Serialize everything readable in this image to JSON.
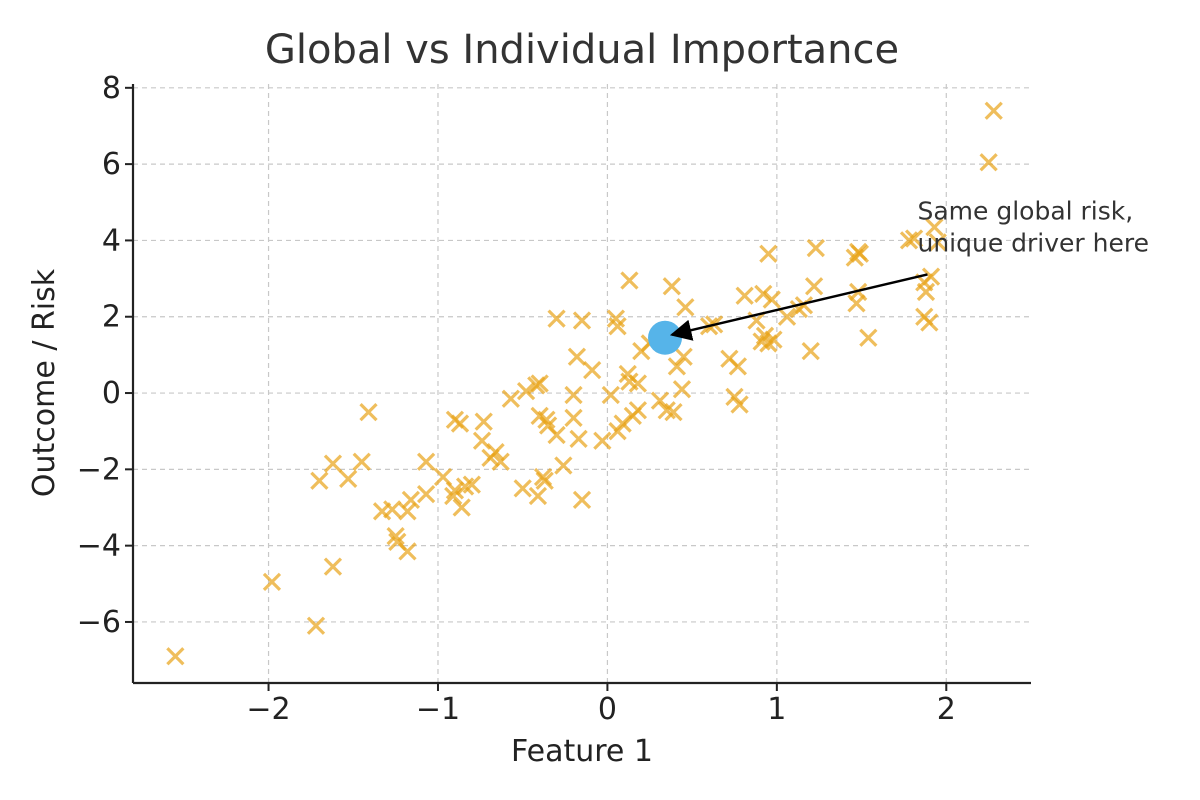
{
  "chart_data": {
    "type": "scatter",
    "title": "Global vs Individual Importance",
    "xlabel": "Feature 1",
    "ylabel": "Outcome / Risk",
    "xlim": [
      -2.8,
      2.5
    ],
    "ylim": [
      -7.6,
      8.1
    ],
    "xticks": [
      -2,
      -1,
      0,
      1,
      2
    ],
    "yticks": [
      -6,
      -4,
      -2,
      0,
      2,
      4,
      6,
      8
    ],
    "grid": true,
    "colors": {
      "points": "#E8A317",
      "highlight": "#56B4E9"
    },
    "points": [
      {
        "x": -2.55,
        "y": -6.9
      },
      {
        "x": -1.98,
        "y": -4.95
      },
      {
        "x": -1.72,
        "y": -6.1
      },
      {
        "x": -1.62,
        "y": -4.55
      },
      {
        "x": -1.7,
        "y": -2.3
      },
      {
        "x": -1.62,
        "y": -1.85
      },
      {
        "x": -1.53,
        "y": -2.25
      },
      {
        "x": -1.45,
        "y": -1.8
      },
      {
        "x": -1.41,
        "y": -0.5
      },
      {
        "x": -1.33,
        "y": -3.1
      },
      {
        "x": -1.27,
        "y": -3.05
      },
      {
        "x": -1.25,
        "y": -3.75
      },
      {
        "x": -1.24,
        "y": -3.9
      },
      {
        "x": -1.18,
        "y": -4.15
      },
      {
        "x": -1.18,
        "y": -3.1
      },
      {
        "x": -1.16,
        "y": -2.8
      },
      {
        "x": -1.07,
        "y": -2.65
      },
      {
        "x": -1.07,
        "y": -1.8
      },
      {
        "x": -0.97,
        "y": -2.2
      },
      {
        "x": -0.91,
        "y": -2.7
      },
      {
        "x": -0.9,
        "y": -2.55
      },
      {
        "x": -0.9,
        "y": -0.7
      },
      {
        "x": -0.87,
        "y": -0.8
      },
      {
        "x": -0.86,
        "y": -3.0
      },
      {
        "x": -0.84,
        "y": -2.45
      },
      {
        "x": -0.8,
        "y": -2.4
      },
      {
        "x": -0.74,
        "y": -1.25
      },
      {
        "x": -0.73,
        "y": -0.75
      },
      {
        "x": -0.69,
        "y": -1.7
      },
      {
        "x": -0.66,
        "y": -1.55
      },
      {
        "x": -0.63,
        "y": -1.8
      },
      {
        "x": -0.57,
        "y": -0.15
      },
      {
        "x": -0.5,
        "y": -2.5
      },
      {
        "x": -0.48,
        "y": 0.05
      },
      {
        "x": -0.42,
        "y": 0.2
      },
      {
        "x": -0.4,
        "y": 0.25
      },
      {
        "x": -0.41,
        "y": -2.7
      },
      {
        "x": -0.4,
        "y": -0.6
      },
      {
        "x": -0.38,
        "y": -2.2
      },
      {
        "x": -0.37,
        "y": -2.3
      },
      {
        "x": -0.36,
        "y": -0.7
      },
      {
        "x": -0.35,
        "y": -0.85
      },
      {
        "x": -0.3,
        "y": -1.1
      },
      {
        "x": -0.3,
        "y": 1.95
      },
      {
        "x": -0.26,
        "y": -1.9
      },
      {
        "x": -0.2,
        "y": -0.05
      },
      {
        "x": -0.2,
        "y": -0.65
      },
      {
        "x": -0.18,
        "y": 0.95
      },
      {
        "x": -0.17,
        "y": -1.2
      },
      {
        "x": -0.15,
        "y": 1.9
      },
      {
        "x": -0.15,
        "y": -2.8
      },
      {
        "x": -0.09,
        "y": 0.6
      },
      {
        "x": -0.03,
        "y": -1.25
      },
      {
        "x": 0.02,
        "y": -0.05
      },
      {
        "x": 0.05,
        "y": 1.95
      },
      {
        "x": 0.06,
        "y": 1.75
      },
      {
        "x": 0.06,
        "y": -1.0
      },
      {
        "x": 0.09,
        "y": -0.8
      },
      {
        "x": 0.12,
        "y": 0.5
      },
      {
        "x": 0.13,
        "y": 2.95
      },
      {
        "x": 0.13,
        "y": 0.3
      },
      {
        "x": 0.15,
        "y": -0.6
      },
      {
        "x": 0.18,
        "y": -0.45
      },
      {
        "x": 0.18,
        "y": 0.25
      },
      {
        "x": 0.2,
        "y": 1.1
      },
      {
        "x": 0.25,
        "y": 1.3
      },
      {
        "x": 0.31,
        "y": -0.2
      },
      {
        "x": 0.35,
        "y": -0.45
      },
      {
        "x": 0.38,
        "y": 2.8
      },
      {
        "x": 0.39,
        "y": -0.5
      },
      {
        "x": 0.41,
        "y": 0.7
      },
      {
        "x": 0.45,
        "y": 0.95
      },
      {
        "x": 0.44,
        "y": 0.1
      },
      {
        "x": 0.46,
        "y": 2.25
      },
      {
        "x": 0.6,
        "y": 1.75
      },
      {
        "x": 0.63,
        "y": 1.8
      },
      {
        "x": 0.72,
        "y": 0.9
      },
      {
        "x": 0.75,
        "y": -0.1
      },
      {
        "x": 0.77,
        "y": 0.7
      },
      {
        "x": 0.78,
        "y": -0.3
      },
      {
        "x": 0.81,
        "y": 2.55
      },
      {
        "x": 0.88,
        "y": 1.9
      },
      {
        "x": 0.91,
        "y": 1.35
      },
      {
        "x": 0.92,
        "y": 2.6
      },
      {
        "x": 0.93,
        "y": 1.5
      },
      {
        "x": 0.95,
        "y": 1.3
      },
      {
        "x": 0.95,
        "y": 3.65
      },
      {
        "x": 0.98,
        "y": 1.4
      },
      {
        "x": 0.97,
        "y": 2.45
      },
      {
        "x": 1.06,
        "y": 2.0
      },
      {
        "x": 1.13,
        "y": 2.2
      },
      {
        "x": 1.16,
        "y": 2.3
      },
      {
        "x": 1.2,
        "y": 1.1
      },
      {
        "x": 1.22,
        "y": 2.8
      },
      {
        "x": 1.23,
        "y": 3.8
      },
      {
        "x": 1.46,
        "y": 3.55
      },
      {
        "x": 1.48,
        "y": 3.7
      },
      {
        "x": 1.49,
        "y": 3.65
      },
      {
        "x": 1.48,
        "y": 2.65
      },
      {
        "x": 1.47,
        "y": 2.35
      },
      {
        "x": 1.54,
        "y": 1.45
      },
      {
        "x": 1.78,
        "y": 4.0
      },
      {
        "x": 1.81,
        "y": 4.05
      },
      {
        "x": 1.87,
        "y": 2.9
      },
      {
        "x": 1.88,
        "y": 2.65
      },
      {
        "x": 1.87,
        "y": 2.0
      },
      {
        "x": 1.9,
        "y": 1.85
      },
      {
        "x": 1.91,
        "y": 3.05
      },
      {
        "x": 1.93,
        "y": 4.35
      },
      {
        "x": 1.95,
        "y": 3.95
      },
      {
        "x": 2.25,
        "y": 6.05
      },
      {
        "x": 2.28,
        "y": 7.4
      }
    ],
    "highlight": {
      "x": 0.34,
      "y": 1.45
    },
    "annotation": {
      "lines": [
        "Same global risk,",
        "unique driver here"
      ],
      "text_x": 1.83,
      "text_y": 4.55
    }
  }
}
